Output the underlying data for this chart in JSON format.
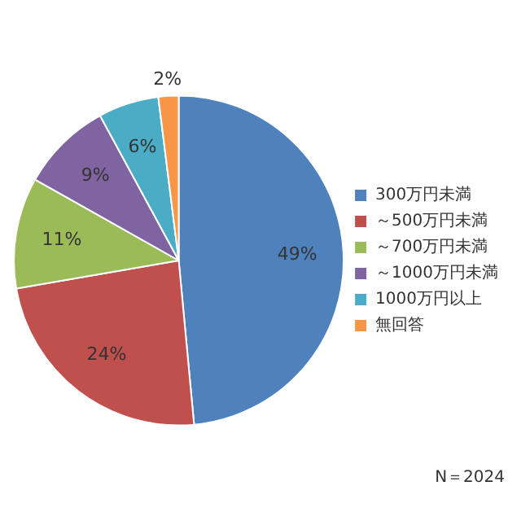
{
  "chart_data": {
    "type": "pie",
    "categories": [
      "300万円未満",
      "～500万円未満",
      "～700万円未満",
      "～1000万円未満",
      "1000万円以上",
      "無回答"
    ],
    "values": [
      49,
      24,
      11,
      9,
      6,
      2
    ],
    "colors": [
      "#4f81bd",
      "#c0504d",
      "#9bbb59",
      "#8064a2",
      "#4bacc6",
      "#f79646"
    ],
    "value_labels": [
      "49%",
      "24%",
      "11%",
      "9%",
      "6%",
      "2%"
    ],
    "legend": "right",
    "annotations": [
      "N＝2024"
    ]
  }
}
